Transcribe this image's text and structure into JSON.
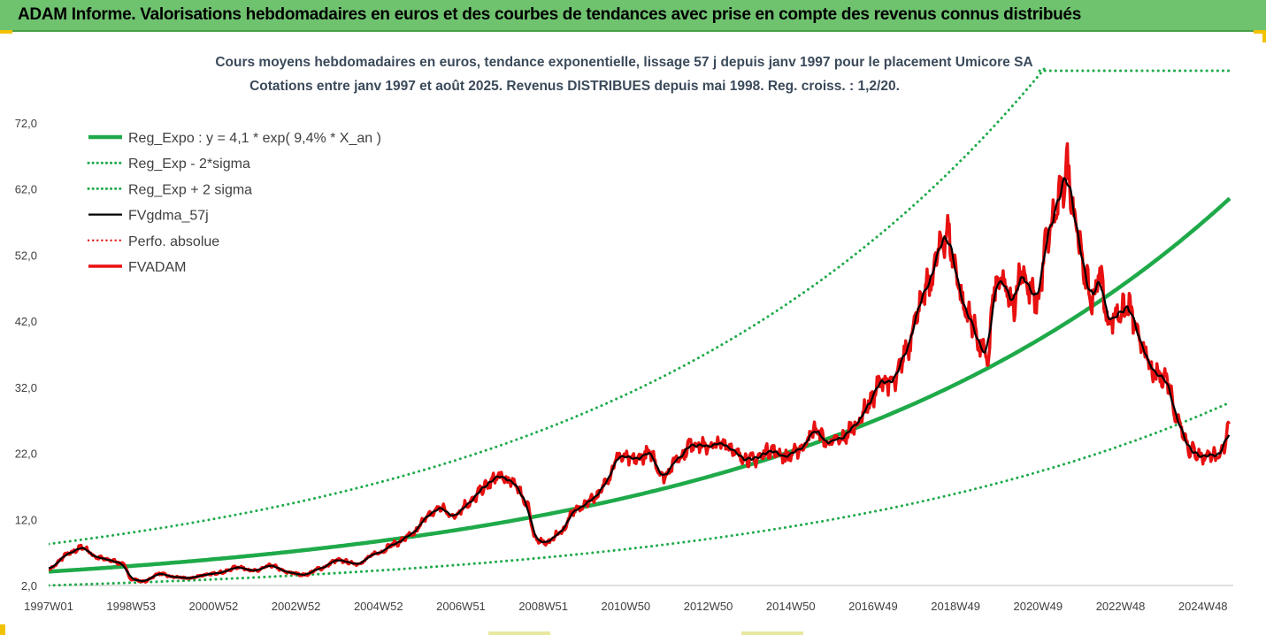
{
  "header": {
    "title": "ADAM Informe. Valorisations hebdomadaires en euros et des courbes de tendances avec prise en compte des revenus connus distribués"
  },
  "colors": {
    "header_bg": "#6fc36f",
    "trend": "#1faa4a",
    "fv": "#000000",
    "adam": "#e81010",
    "text": "#404040"
  },
  "chart_data": {
    "type": "line",
    "title": "Cours moyens hebdomadaires en euros, tendance exponentielle, lissage 57 j depuis janv 1997 pour le placement Umicore SA",
    "subtitle": "Cotations entre janv 1997 et août 2025. Revenus DISTRIBUES depuis mai 1998. Reg. croiss. : 1,2/20.",
    "ylim": [
      2,
      78
    ],
    "yticks": [
      "2,0",
      "12,0",
      "22,0",
      "32,0",
      "42,0",
      "52,0",
      "62,0",
      "72,0"
    ],
    "ytick_values": [
      2,
      12,
      22,
      32,
      42,
      52,
      62,
      72
    ],
    "xticks": [
      "1997W01",
      "1998W53",
      "2000W52",
      "2002W52",
      "2004W52",
      "2006W51",
      "2008W51",
      "2010W50",
      "2012W50",
      "2014W50",
      "2016W49",
      "2018W49",
      "2020W49",
      "2022W48",
      "2024W48"
    ],
    "xtick_years": [
      1997.0,
      1999.0,
      2001.0,
      2003.0,
      2005.0,
      2007.0,
      2009.0,
      2011.0,
      2013.0,
      2015.0,
      2017.0,
      2019.0,
      2021.0,
      2023.0,
      2025.0
    ],
    "xlim": [
      1997.0,
      2025.65
    ],
    "grid": false,
    "legend_position": "top-left",
    "regression": {
      "a": 4.1,
      "rate": 0.094,
      "sigma_factor_low": 0.49,
      "sigma_factor_high": 2.02
    },
    "series": [
      {
        "name": "Reg_Expo : y = 4,1 * exp( 9,4% *  X_an )",
        "style": "solid",
        "color": "#1faa4a",
        "width": 4.5
      },
      {
        "name": "Reg_Exp - 2*sigma",
        "style": "dotted",
        "color": "#1faa4a",
        "width": 3
      },
      {
        "name": "Reg_Exp + 2 sigma",
        "style": "dotted",
        "color": "#1faa4a",
        "width": 3
      },
      {
        "name": "FVgdma_57j",
        "style": "solid",
        "color": "#000000",
        "width": 2.2
      },
      {
        "name": "Perfo. absolue",
        "style": "dotted",
        "color": "#e81010",
        "width": 2.2
      },
      {
        "name": "FVADAM",
        "style": "solid",
        "color": "#e81010",
        "width": 3.5
      }
    ],
    "fvadam_keypoints": [
      [
        1997.0,
        4.5
      ],
      [
        1997.5,
        6.8
      ],
      [
        1997.8,
        7.8
      ],
      [
        1998.2,
        6.2
      ],
      [
        1998.5,
        5.8
      ],
      [
        1998.8,
        5.3
      ],
      [
        1999.0,
        3.0
      ],
      [
        1999.3,
        2.6
      ],
      [
        1999.7,
        3.8
      ],
      [
        2000.0,
        3.3
      ],
      [
        2000.4,
        3.1
      ],
      [
        2000.8,
        3.6
      ],
      [
        2001.2,
        4.0
      ],
      [
        2001.6,
        4.8
      ],
      [
        2002.0,
        4.2
      ],
      [
        2002.4,
        5.0
      ],
      [
        2002.8,
        4.0
      ],
      [
        2003.2,
        3.6
      ],
      [
        2003.6,
        4.6
      ],
      [
        2004.0,
        5.8
      ],
      [
        2004.5,
        5.3
      ],
      [
        2005.0,
        7.0
      ],
      [
        2005.4,
        8.3
      ],
      [
        2005.8,
        9.6
      ],
      [
        2006.2,
        12.5
      ],
      [
        2006.5,
        13.8
      ],
      [
        2006.8,
        12.5
      ],
      [
        2007.2,
        14.5
      ],
      [
        2007.6,
        17.0
      ],
      [
        2007.9,
        18.5
      ],
      [
        2008.3,
        17.5
      ],
      [
        2008.6,
        14.5
      ],
      [
        2008.8,
        9.0
      ],
      [
        2009.1,
        8.5
      ],
      [
        2009.4,
        10.0
      ],
      [
        2009.8,
        13.5
      ],
      [
        2010.3,
        15.5
      ],
      [
        2010.6,
        18.5
      ],
      [
        2010.8,
        21.5
      ],
      [
        2011.2,
        21.0
      ],
      [
        2011.6,
        22.0
      ],
      [
        2011.9,
        18.5
      ],
      [
        2012.3,
        21.5
      ],
      [
        2012.6,
        23.5
      ],
      [
        2013.0,
        23.0
      ],
      [
        2013.4,
        23.5
      ],
      [
        2013.8,
        21.5
      ],
      [
        2014.1,
        21.0
      ],
      [
        2014.5,
        22.5
      ],
      [
        2014.9,
        21.5
      ],
      [
        2015.2,
        22.5
      ],
      [
        2015.6,
        25.5
      ],
      [
        2015.9,
        23.5
      ],
      [
        2016.2,
        24.0
      ],
      [
        2016.6,
        26.5
      ],
      [
        2016.9,
        29.5
      ],
      [
        2017.2,
        33.0
      ],
      [
        2017.5,
        32.5
      ],
      [
        2017.8,
        37.5
      ],
      [
        2018.1,
        44.0
      ],
      [
        2018.4,
        48.0
      ],
      [
        2018.6,
        53.0
      ],
      [
        2018.8,
        55.5
      ],
      [
        2019.0,
        50.0
      ],
      [
        2019.2,
        44.0
      ],
      [
        2019.4,
        42.0
      ],
      [
        2019.6,
        38.0
      ],
      [
        2019.8,
        36.0
      ],
      [
        2019.9,
        46.0
      ],
      [
        2020.1,
        48.0
      ],
      [
        2020.4,
        44.5
      ],
      [
        2020.6,
        50.0
      ],
      [
        2020.8,
        46.5
      ],
      [
        2021.0,
        45.0
      ],
      [
        2021.2,
        54.0
      ],
      [
        2021.4,
        58.0
      ],
      [
        2021.6,
        62.0
      ],
      [
        2021.7,
        65.5
      ],
      [
        2021.9,
        58.0
      ],
      [
        2022.1,
        50.0
      ],
      [
        2022.3,
        45.0
      ],
      [
        2022.5,
        49.0
      ],
      [
        2022.7,
        42.0
      ],
      [
        2023.0,
        43.5
      ],
      [
        2023.2,
        44.0
      ],
      [
        2023.5,
        38.5
      ],
      [
        2023.8,
        34.0
      ],
      [
        2024.1,
        33.5
      ],
      [
        2024.4,
        27.0
      ],
      [
        2024.7,
        22.5
      ],
      [
        2025.0,
        21.5
      ],
      [
        2025.2,
        22.0
      ],
      [
        2025.4,
        21.0
      ],
      [
        2025.5,
        23.0
      ],
      [
        2025.65,
        27.0
      ]
    ]
  }
}
